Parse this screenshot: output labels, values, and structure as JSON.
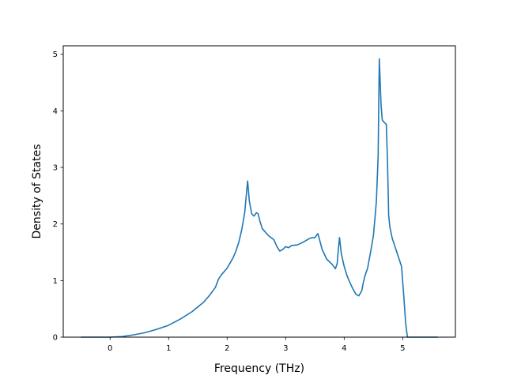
{
  "chart_data": {
    "type": "line",
    "title": "",
    "xlabel": "Frequency (THz)",
    "ylabel": "Density of States",
    "xlim": [
      -0.8,
      5.9
    ],
    "ylim": [
      0,
      5.15
    ],
    "x_ticks": [
      0,
      1,
      2,
      3,
      4,
      5
    ],
    "y_ticks": [
      0,
      1,
      2,
      3,
      4,
      5
    ],
    "grid": false,
    "series_color": "#1f77b4",
    "series": [
      {
        "name": "",
        "x": [
          -0.5,
          -0.2,
          0.0,
          0.2,
          0.4,
          0.6,
          0.8,
          1.0,
          1.2,
          1.4,
          1.6,
          1.7,
          1.8,
          1.85,
          1.9,
          2.0,
          2.1,
          2.15,
          2.2,
          2.25,
          2.3,
          2.35,
          2.38,
          2.42,
          2.46,
          2.5,
          2.53,
          2.56,
          2.6,
          2.7,
          2.8,
          2.85,
          2.9,
          2.95,
          3.0,
          3.05,
          3.1,
          3.2,
          3.3,
          3.4,
          3.45,
          3.5,
          3.55,
          3.58,
          3.62,
          3.7,
          3.8,
          3.85,
          3.88,
          3.9,
          3.92,
          3.95,
          4.0,
          4.05,
          4.1,
          4.15,
          4.2,
          4.25,
          4.3,
          4.33,
          4.36,
          4.4,
          4.45,
          4.5,
          4.55,
          4.58,
          4.6,
          4.63,
          4.65,
          4.68,
          4.72,
          4.74,
          4.76,
          4.78,
          4.82,
          4.9,
          4.98,
          5.02,
          5.05,
          5.08,
          5.12,
          5.3,
          5.6
        ],
        "values": [
          0.0,
          0.0,
          0.0,
          0.01,
          0.04,
          0.08,
          0.14,
          0.21,
          0.32,
          0.45,
          0.62,
          0.74,
          0.88,
          1.02,
          1.1,
          1.22,
          1.4,
          1.52,
          1.68,
          1.9,
          2.2,
          2.76,
          2.4,
          2.18,
          2.14,
          2.2,
          2.18,
          2.05,
          1.92,
          1.8,
          1.72,
          1.6,
          1.52,
          1.55,
          1.6,
          1.58,
          1.62,
          1.63,
          1.68,
          1.74,
          1.76,
          1.76,
          1.83,
          1.72,
          1.56,
          1.38,
          1.28,
          1.21,
          1.3,
          1.55,
          1.76,
          1.48,
          1.25,
          1.08,
          0.96,
          0.85,
          0.76,
          0.73,
          0.82,
          0.98,
          1.1,
          1.22,
          1.5,
          1.8,
          2.4,
          3.2,
          4.92,
          4.1,
          3.84,
          3.8,
          3.76,
          3.1,
          2.15,
          1.95,
          1.75,
          1.5,
          1.25,
          0.7,
          0.25,
          0.0,
          0.0,
          0.0,
          0.0
        ]
      }
    ]
  }
}
